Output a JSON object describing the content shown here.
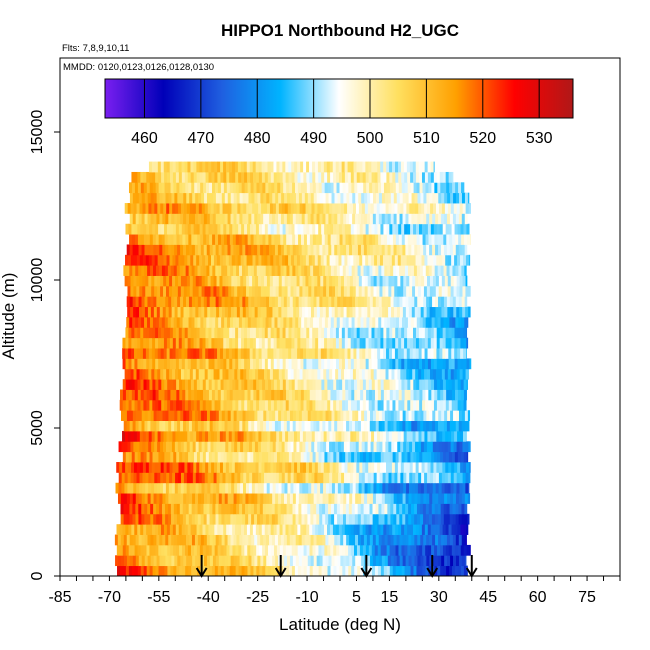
{
  "chart_data": {
    "type": "heatmap",
    "title": "HIPPO1 Northbound H2_UGC",
    "subtitle_flights": "Flts: 7,8,9,10,11",
    "subtitle_dates": "MMDD: 0120,0123,0126,0128,0130",
    "xlabel": "Latitude (deg N)",
    "ylabel": "Altitude (m)",
    "xlim": [
      -85,
      85
    ],
    "ylim": [
      0,
      17500
    ],
    "x_ticks": [
      -85,
      -70,
      -55,
      -40,
      -25,
      -10,
      5,
      15,
      30,
      45,
      60,
      75
    ],
    "x_tick_labels": [
      "-85",
      "-70",
      "-55",
      "-40",
      "-25",
      "-10",
      "5",
      "15",
      "30",
      "45",
      "60",
      "75"
    ],
    "y_ticks": [
      0,
      5000,
      10000,
      15000
    ],
    "y_tick_labels": [
      "0",
      "5000",
      "10000",
      "15000"
    ],
    "colorbar": {
      "min": 453,
      "max": 536,
      "ticks": [
        460,
        470,
        480,
        490,
        500,
        510,
        520,
        530
      ],
      "tick_labels": [
        "460",
        "470",
        "480",
        "490",
        "500",
        "510",
        "520",
        "530"
      ],
      "colors": [
        "#7a1ff0",
        "#0000b8",
        "#1f5fe0",
        "#00b4ff",
        "#ffffff",
        "#ffe060",
        "#ffa000",
        "#ff0000",
        "#b01818"
      ]
    },
    "profile_latitudes": [
      -42,
      -18,
      8,
      28,
      40
    ],
    "data_extent": {
      "lat_min": -68,
      "lat_max": 39,
      "alt_min": 0,
      "alt_max": 14000,
      "layer_thickness_m": 350
    },
    "gradient": {
      "south_value": 520,
      "north_value": 482,
      "surface_north_value": 465,
      "upper_level_value": 506
    }
  }
}
